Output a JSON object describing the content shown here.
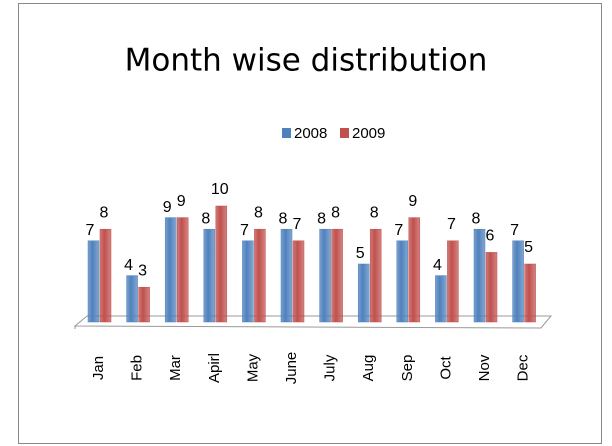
{
  "chart_data": {
    "type": "bar",
    "title": "Month wise distribution",
    "categories": [
      "Jan",
      "Feb",
      "Mar",
      "Apirl",
      "May",
      "June",
      "July",
      "Aug",
      "Sep",
      "Oct",
      "Nov",
      "Dec"
    ],
    "series": [
      {
        "name": "2008",
        "color": "#4f81bd",
        "values": [
          7,
          4,
          9,
          8,
          7,
          8,
          8,
          5,
          7,
          4,
          8,
          7
        ]
      },
      {
        "name": "2009",
        "color": "#c0504d",
        "values": [
          8,
          3,
          9,
          10,
          8,
          7,
          8,
          8,
          9,
          7,
          6,
          5
        ]
      }
    ],
    "legend": "top"
  }
}
